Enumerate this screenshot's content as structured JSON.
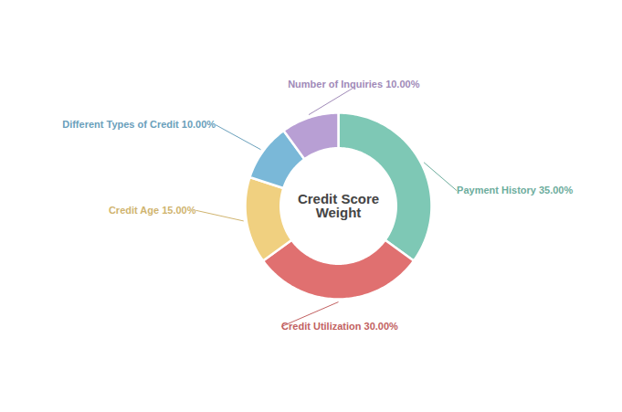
{
  "chart_data": {
    "type": "pie",
    "title": "Credit Score Weight",
    "categories": [
      "Payment History 35.00%",
      "Credit Utilization 30.00%",
      "Credit Age 15.00%",
      "Different Types of Credit 10.00%",
      "Number of Inquiries 10.00%"
    ],
    "values": [
      35,
      30,
      15,
      10,
      10
    ],
    "colors": [
      "#7ec8b5",
      "#e07070",
      "#f0d080",
      "#7ab8d8",
      "#b89fd4"
    ]
  }
}
